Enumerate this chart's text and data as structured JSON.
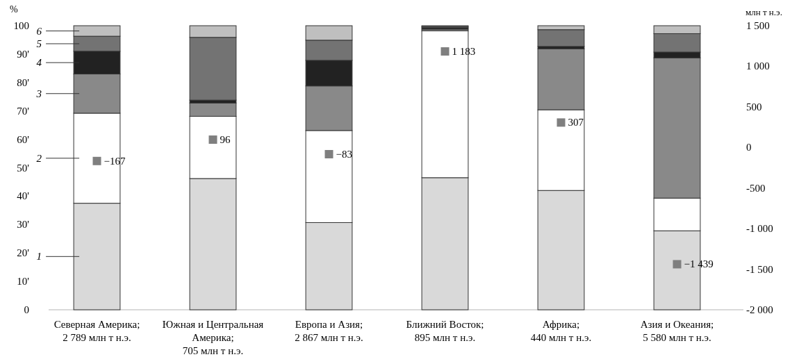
{
  "chart_data": {
    "type": "bar",
    "stacked": true,
    "categories": [
      "Северная Америка;\n2 789 млн т н.э.",
      "Южная и Центральная\nАмерика;\n705 млн т н.э.",
      "Европа и Азия;\n2 867 млн т н.э.",
      "Ближний Восток;\n895 млн т н.э.",
      "Африка;\n440 млн т н.э.",
      "Азия и Океания;\n5 580 млн т н.э."
    ],
    "series": [
      {
        "name": "1",
        "color": "#d9d9d9",
        "values": [
          37.5,
          46.2,
          30.7,
          46.5,
          42.0,
          27.8
        ]
      },
      {
        "name": "2",
        "color": "#ffffff",
        "values": [
          31.7,
          21.9,
          32.4,
          51.7,
          28.4,
          11.5
        ]
      },
      {
        "name": "3",
        "color": "#898989",
        "values": [
          13.8,
          4.7,
          15.7,
          0.6,
          21.5,
          49.4
        ]
      },
      {
        "name": "4",
        "color": "#222222",
        "values": [
          8.0,
          1.0,
          9.0,
          0.5,
          0.8,
          2.0
        ]
      },
      {
        "name": "5",
        "color": "#737373",
        "values": [
          5.3,
          22.1,
          7.1,
          0.4,
          5.9,
          6.5
        ]
      },
      {
        "name": "6",
        "color": "#bfbfbf",
        "values": [
          3.7,
          4.1,
          5.1,
          0.3,
          1.4,
          2.8
        ]
      },
      {
        "type": "scatter",
        "axis": "y2",
        "color": "#7f7f7f",
        "marker": "square",
        "x": [
          "Северная Америка;\n2 789 млн т н.э.",
          "Южная и Центральная\nАмерика;\n705 млн т н.э.",
          "Европа и Азия;\n2 867 млн т н.э.",
          "Ближний Восток;\n895 млн т н.э.",
          "Африка;\n440 млн т н.э.",
          "Азия и Океания;\n5 580 млн т н.э."
        ],
        "values": [
          -167,
          96,
          -83,
          1183,
          307,
          -1439
        ],
        "value_labels": [
          "−167",
          "96",
          "−83",
          "1 183",
          "307",
          "−1 439"
        ]
      }
    ],
    "ylabel": "%",
    "y2label": "млн т н.э.",
    "ylim": [
      0,
      100
    ],
    "yticks": [
      0,
      {
        "value": 10,
        "label": "10'"
      },
      {
        "value": 20,
        "label": "20'"
      },
      {
        "value": 30,
        "label": "30'"
      },
      {
        "value": 40,
        "label": "40'"
      },
      {
        "value": 50,
        "label": "50'"
      },
      {
        "value": 60,
        "label": "60'"
      },
      {
        "value": 70,
        "label": "70'"
      },
      {
        "value": 80,
        "label": "80'"
      },
      {
        "value": 90,
        "label": "90'"
      },
      100
    ],
    "y2lim": [
      -2000,
      1500
    ],
    "y2ticks": [
      {
        "value": -2000,
        "label": "-2 000"
      },
      {
        "value": -1500,
        "label": "-1 500"
      },
      {
        "value": -1000,
        "label": "-1 000"
      },
      -500,
      0,
      500,
      {
        "value": 1000,
        "label": "1 000"
      },
      {
        "value": 1500,
        "label": "1 500"
      }
    ],
    "grid": false,
    "legend": "left"
  }
}
